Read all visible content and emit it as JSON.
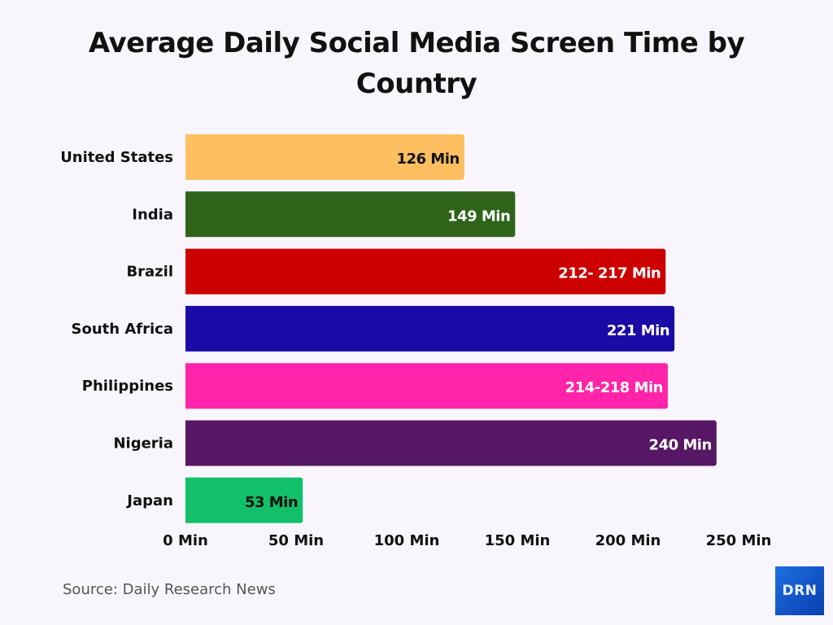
{
  "chart_data": {
    "type": "bar",
    "orientation": "horizontal",
    "title": "Average Daily Social Media Screen Time by Country",
    "xlabel": "",
    "ylabel": "",
    "categories": [
      "United States",
      "India",
      "Brazil",
      "South Africa",
      "Philippines",
      "Nigeria",
      "Japan"
    ],
    "values": [
      126,
      149,
      217,
      221,
      218,
      240,
      53
    ],
    "ranges": [
      [
        126,
        126
      ],
      [
        149,
        149
      ],
      [
        212,
        217
      ],
      [
        221,
        221
      ],
      [
        214,
        218
      ],
      [
        240,
        240
      ],
      [
        53,
        53
      ]
    ],
    "data_labels": [
      "126 Min",
      "149 Min",
      "212- 217 Min",
      "221 Min",
      "214-218 Min",
      "240 Min",
      "53 Min"
    ],
    "colors": [
      "#fdbf5f",
      "#2f641a",
      "#cc0000",
      "#1a0aa6",
      "#ff24a9",
      "#561764",
      "#11c068"
    ],
    "label_colors": [
      "#111111",
      "#ffffff",
      "#ffffff",
      "#ffffff",
      "#ffffff",
      "#ffffff",
      "#111111"
    ],
    "xlim": [
      0,
      250
    ],
    "xticks": [
      0,
      50,
      100,
      150,
      200,
      250
    ],
    "xtick_labels": [
      "0 Min",
      "50 Min",
      "100 Min",
      "150 Min",
      "200 Min",
      "250 Min"
    ],
    "grid": false,
    "legend": "none"
  },
  "footer": {
    "source": "Source: Daily Research News",
    "logo_text": "DRN"
  }
}
